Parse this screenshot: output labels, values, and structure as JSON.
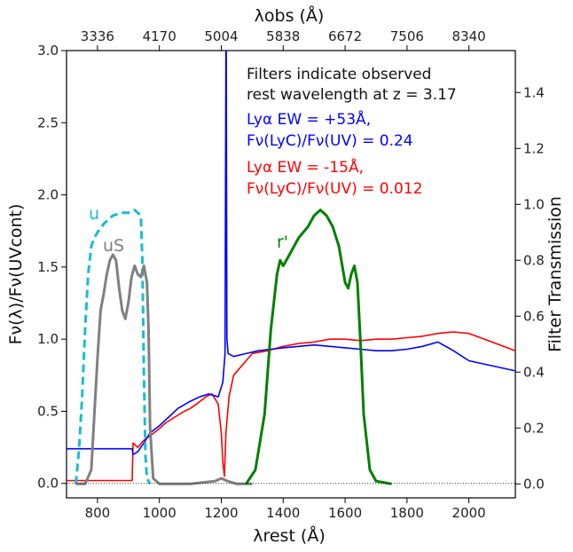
{
  "chart_data": {
    "type": "line",
    "axes": {
      "x_bottom": {
        "label": "λrest (Å)",
        "range": [
          700,
          2150
        ],
        "ticks": [
          800,
          1000,
          1200,
          1400,
          1600,
          1800,
          2000
        ]
      },
      "x_top": {
        "label": "λobs (Å)",
        "ticks": [
          "3336",
          "4170",
          "5004",
          "5838",
          "6672",
          "7506",
          "8340"
        ]
      },
      "y_left": {
        "label": "Fν(λ)/Fν(UVcont)",
        "range": [
          -0.1,
          3.0
        ],
        "ticks": [
          "0.0",
          "0.5",
          "1.0",
          "1.5",
          "2.0",
          "2.5",
          "3.0"
        ]
      },
      "y_right": {
        "label": "Filter Transmission",
        "range": [
          -0.05,
          1.55
        ],
        "ticks": [
          "0.0",
          "0.2",
          "0.4",
          "0.6",
          "0.8",
          "1.0",
          "1.2",
          "1.4"
        ]
      }
    },
    "annotations": {
      "line1": "Filters indicate observed",
      "line2": "rest wavelength at z = 3.17",
      "blue1": "Lyα EW = +53Å,",
      "blue2": "Fν(LyC)/Fν(UV) = 0.24",
      "red1": "Lyα EW = -15Å,",
      "red2": "Fν(LyC)/Fν(UV) = 0.012"
    },
    "filter_labels": {
      "u": "u",
      "uS": "uS",
      "r": "r'"
    },
    "colors": {
      "blue": "#0000ff",
      "red": "#ff0000",
      "u": "#17becf",
      "uS": "#808080",
      "r": "#008000"
    },
    "series": [
      {
        "axis": "left",
        "color": "#ff0000",
        "x": [
          700,
          912,
          915,
          930,
          950,
          970,
          1000,
          1020,
          1050,
          1080,
          1100,
          1120,
          1150,
          1170,
          1190,
          1200,
          1205,
          1210,
          1215,
          1225,
          1240,
          1260,
          1280,
          1300,
          1350,
          1400,
          1450,
          1500,
          1550,
          1600,
          1650,
          1700,
          1750,
          1800,
          1850,
          1900,
          1950,
          2000,
          2150
        ],
        "y": [
          0.02,
          0.02,
          0.28,
          0.25,
          0.3,
          0.33,
          0.38,
          0.42,
          0.46,
          0.5,
          0.52,
          0.55,
          0.6,
          0.62,
          0.55,
          0.35,
          0.15,
          0.05,
          0.35,
          0.6,
          0.75,
          0.8,
          0.85,
          0.9,
          0.92,
          0.95,
          0.97,
          0.98,
          1.0,
          1.0,
          0.99,
          1.0,
          1.0,
          1.01,
          1.02,
          1.04,
          1.05,
          1.04,
          0.92
        ]
      },
      {
        "axis": "left",
        "color": "#0000ff",
        "x": [
          700,
          912,
          915,
          930,
          950,
          970,
          1000,
          1030,
          1060,
          1100,
          1130,
          1160,
          1190,
          1205,
          1212,
          1215,
          1216,
          1218,
          1222,
          1240,
          1280,
          1320,
          1360,
          1400,
          1450,
          1500,
          1550,
          1600,
          1650,
          1700,
          1750,
          1800,
          1850,
          1900,
          1950,
          2000,
          2150
        ],
        "y": [
          0.24,
          0.24,
          0.2,
          0.22,
          0.28,
          0.35,
          0.4,
          0.46,
          0.52,
          0.57,
          0.6,
          0.62,
          0.6,
          0.7,
          0.9,
          3.0,
          3.0,
          1.0,
          0.9,
          0.88,
          0.9,
          0.92,
          0.93,
          0.94,
          0.95,
          0.96,
          0.95,
          0.94,
          0.93,
          0.92,
          0.92,
          0.93,
          0.95,
          0.98,
          0.92,
          0.85,
          0.78
        ]
      },
      {
        "name": "u",
        "axis": "right",
        "color": "#17becf",
        "dashed": true,
        "x": [
          730,
          740,
          750,
          760,
          770,
          780,
          790,
          800,
          820,
          850,
          880,
          900,
          920,
          940,
          945,
          950,
          955,
          960,
          970
        ],
        "y": [
          0.0,
          0.12,
          0.3,
          0.55,
          0.75,
          0.85,
          0.88,
          0.9,
          0.93,
          0.96,
          0.97,
          0.97,
          0.98,
          0.96,
          0.8,
          0.4,
          0.1,
          0.02,
          0.0
        ]
      },
      {
        "name": "uS",
        "axis": "right",
        "color": "#808080",
        "x": [
          730,
          760,
          780,
          800,
          810,
          820,
          830,
          840,
          850,
          860,
          870,
          880,
          890,
          900,
          910,
          920,
          930,
          940,
          950,
          960,
          965,
          970,
          980,
          1000,
          1100,
          1180,
          1200,
          1220,
          1250,
          1300
        ],
        "y": [
          0.0,
          0.0,
          0.05,
          0.45,
          0.62,
          0.68,
          0.75,
          0.8,
          0.82,
          0.8,
          0.7,
          0.62,
          0.59,
          0.65,
          0.74,
          0.78,
          0.75,
          0.74,
          0.78,
          0.72,
          0.55,
          0.2,
          0.02,
          0.0,
          0.0,
          0.01,
          0.02,
          0.01,
          0.0,
          0.0
        ]
      },
      {
        "name": "r'",
        "axis": "right",
        "color": "#008000",
        "x": [
          1280,
          1310,
          1340,
          1360,
          1380,
          1390,
          1400,
          1420,
          1450,
          1480,
          1500,
          1520,
          1540,
          1560,
          1580,
          1600,
          1610,
          1620,
          1630,
          1640,
          1650,
          1660,
          1680,
          1700,
          1750
        ],
        "y": [
          0.0,
          0.05,
          0.25,
          0.55,
          0.75,
          0.8,
          0.78,
          0.82,
          0.88,
          0.92,
          0.96,
          0.98,
          0.96,
          0.92,
          0.85,
          0.72,
          0.7,
          0.75,
          0.78,
          0.72,
          0.5,
          0.25,
          0.05,
          0.01,
          0.0
        ]
      }
    ]
  }
}
